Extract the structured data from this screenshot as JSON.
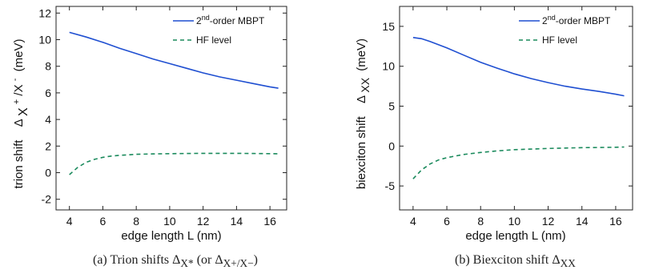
{
  "figures": [
    {
      "caption": "(a) Trion shifts Δ_{X*} (or Δ_{X+/X−})",
      "caption_parts": {
        "prefix": "(a) Trion shifts Δ",
        "sub1": "X*",
        "mid": " (or Δ",
        "sub2": "X+/X−",
        "suffix": ")"
      },
      "chart_data": {
        "type": "line",
        "xlabel": "edge length L (nm)",
        "ylabel": {
          "prefix": "trion shift",
          "delta": "Δ",
          "sub_a": "X",
          "sup_a": "+",
          "slash": "/X",
          "sup_b": "-",
          "unit": "(meV)"
        },
        "xlim": [
          3.2,
          17
        ],
        "ylim": [
          -2.8,
          12.5
        ],
        "xticks": [
          "4",
          "6",
          "8",
          "10",
          "12",
          "14",
          "16"
        ],
        "yticks": [
          "-2",
          "0",
          "2",
          "4",
          "6",
          "8",
          "10",
          "12"
        ],
        "xtick_values": [
          4,
          6,
          8,
          10,
          12,
          14,
          16
        ],
        "ytick_values": [
          -2,
          0,
          2,
          4,
          6,
          8,
          10,
          12
        ],
        "grid": false,
        "legend_position": "top-right",
        "series": [
          {
            "name": "2nd-order MBPT",
            "legend": {
              "base": "2",
              "sup": "nd",
              "rest": "-order MBPT"
            },
            "style": "solid",
            "color": "#1f4fd1",
            "x": [
              4,
              5,
              6,
              7,
              8,
              9,
              10,
              11,
              12,
              13,
              14,
              15,
              16,
              16.5
            ],
            "y": [
              10.55,
              10.2,
              9.8,
              9.35,
              8.95,
              8.55,
              8.2,
              7.85,
              7.5,
              7.2,
              6.95,
              6.7,
              6.45,
              6.35
            ]
          },
          {
            "name": "HF level",
            "legend": {
              "base": "HF level",
              "sup": "",
              "rest": ""
            },
            "style": "dashed",
            "color": "#1a8a5c",
            "x": [
              4,
              4.5,
              5,
              5.5,
              6,
              6.5,
              7,
              8,
              9,
              10,
              11,
              12,
              13,
              14,
              15,
              16,
              16.5
            ],
            "y": [
              -0.15,
              0.4,
              0.78,
              1.0,
              1.15,
              1.25,
              1.3,
              1.38,
              1.41,
              1.43,
              1.44,
              1.45,
              1.45,
              1.45,
              1.44,
              1.43,
              1.42
            ]
          }
        ]
      }
    },
    {
      "caption": "(b) Biexciton shift Δ_XX",
      "caption_parts": {
        "prefix": "(b) Biexciton shift Δ",
        "sub1": "XX",
        "mid": "",
        "sub2": "",
        "suffix": ""
      },
      "chart_data": {
        "type": "line",
        "xlabel": "edge length L (nm)",
        "ylabel": {
          "prefix": "biexciton shift",
          "delta": "Δ",
          "sub_a": "XX",
          "sup_a": "",
          "slash": "",
          "sup_b": "",
          "unit": "(meV)"
        },
        "xlim": [
          3.2,
          17
        ],
        "ylim": [
          -8,
          17.5
        ],
        "xticks": [
          "4",
          "6",
          "8",
          "10",
          "12",
          "14",
          "16"
        ],
        "yticks": [
          "-5",
          "0",
          "5",
          "10",
          "15"
        ],
        "xtick_values": [
          4,
          6,
          8,
          10,
          12,
          14,
          16
        ],
        "ytick_values": [
          -5,
          0,
          5,
          10,
          15
        ],
        "grid": false,
        "legend_position": "top-right",
        "series": [
          {
            "name": "2nd-order MBPT",
            "legend": {
              "base": "2",
              "sup": "nd",
              "rest": "-order MBPT"
            },
            "style": "solid",
            "color": "#1f4fd1",
            "x": [
              4,
              4.5,
              5,
              6,
              7,
              8,
              9,
              10,
              11,
              12,
              13,
              14,
              15,
              16,
              16.5
            ],
            "y": [
              13.6,
              13.45,
              13.1,
              12.3,
              11.4,
              10.5,
              9.75,
              9.05,
              8.45,
              7.95,
              7.5,
              7.15,
              6.85,
              6.5,
              6.3
            ]
          },
          {
            "name": "HF level",
            "legend": {
              "base": "HF level",
              "sup": "",
              "rest": ""
            },
            "style": "dashed",
            "color": "#1a8a5c",
            "x": [
              4,
              4.5,
              5,
              5.5,
              6,
              7,
              8,
              9,
              10,
              11,
              12,
              13,
              14,
              15,
              16,
              16.5
            ],
            "y": [
              -4.1,
              -3.0,
              -2.25,
              -1.75,
              -1.45,
              -1.05,
              -0.8,
              -0.6,
              -0.45,
              -0.38,
              -0.3,
              -0.25,
              -0.2,
              -0.18,
              -0.15,
              -0.12
            ]
          }
        ]
      }
    }
  ]
}
